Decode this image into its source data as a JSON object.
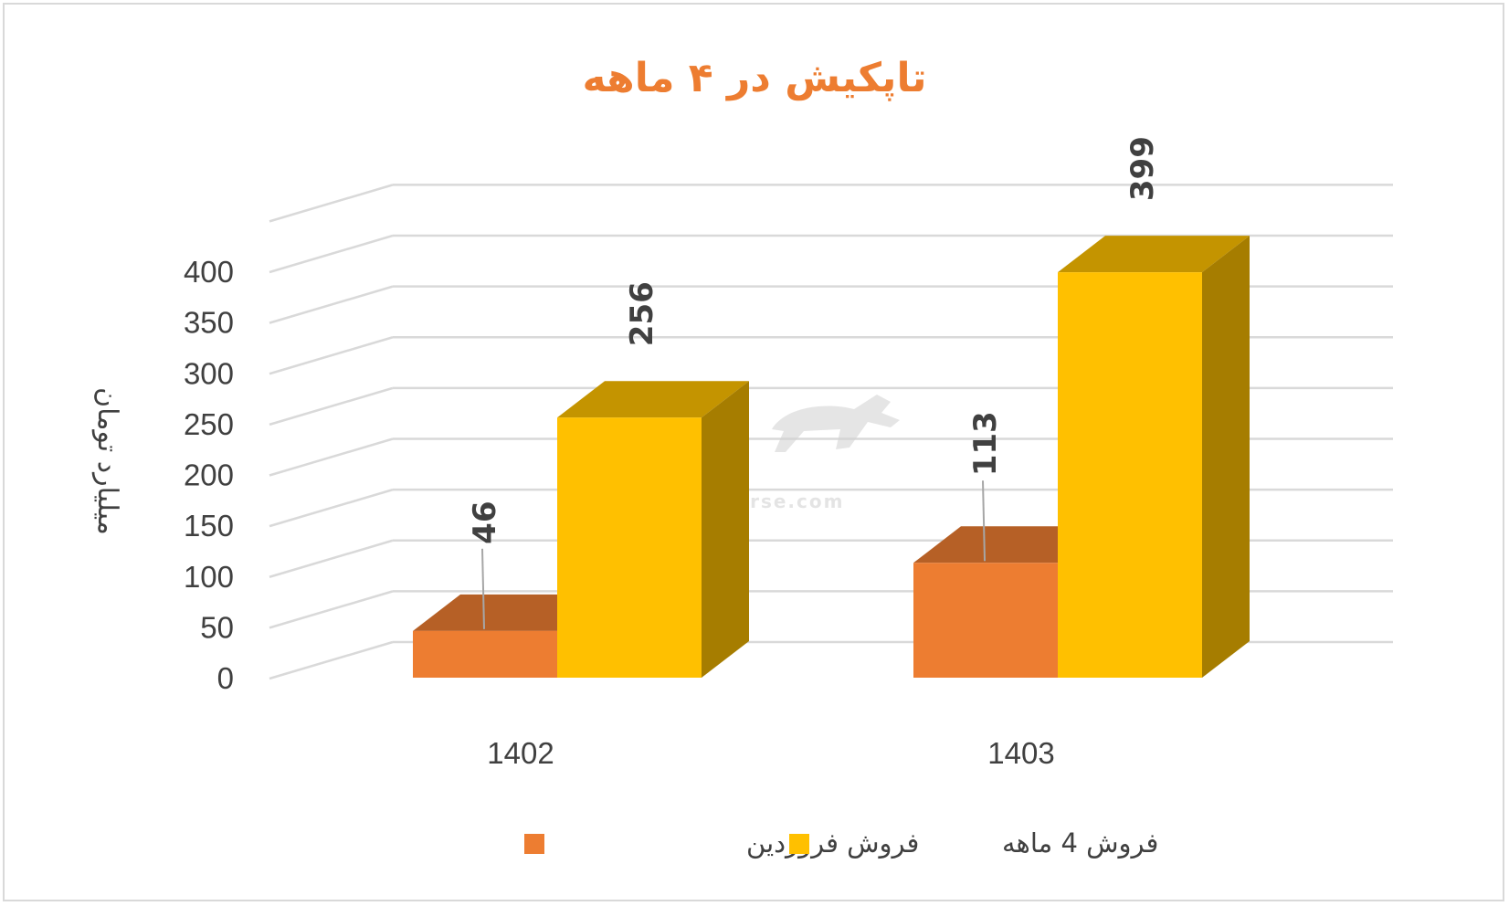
{
  "chart_data": {
    "type": "bar",
    "title": "تاپکیش در ۴ ماهه",
    "ylabel": "میلیارد تومان",
    "xlabel": "",
    "categories": [
      "1402",
      "1403"
    ],
    "series": [
      {
        "name": "فروش فروردین",
        "values": [
          46,
          113
        ],
        "color": "#ED7D31"
      },
      {
        "name": "فروش 4  ماهه",
        "values": [
          256,
          399
        ],
        "color": "#FFC000"
      }
    ],
    "ylim": [
      0,
      400
    ],
    "yticks": [
      "0",
      "50",
      "100",
      "150",
      "200",
      "250",
      "300",
      "350",
      "400"
    ],
    "grid": true,
    "legend": "bottom",
    "style": "3d-clustered-column"
  },
  "watermark": {
    "text": "nabzebourse.com"
  }
}
